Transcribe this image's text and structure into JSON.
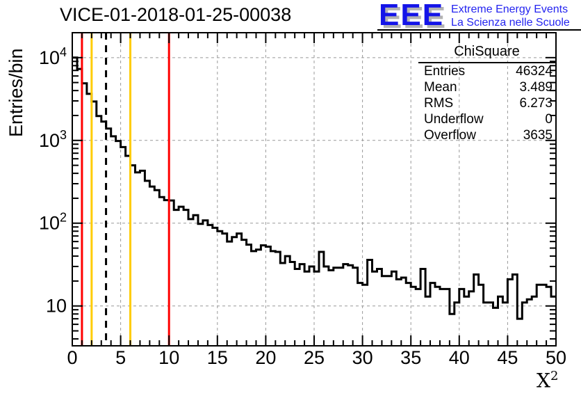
{
  "header": {
    "title": "VICE-01-2018-01-25-00038"
  },
  "logo": {
    "eee": "EEE",
    "tagline1": "Extreme Energy Events",
    "tagline2": "La Scienza nelle Scuole",
    "eee_color": "#1414e8",
    "tagline_color": "#2424f0",
    "shadow_color": "#b3b3b3"
  },
  "axes": {
    "y_title": "Entries/bin",
    "x_title_base": "X",
    "x_title_sup": "2"
  },
  "stats": {
    "title": "ChiSquare",
    "rows": [
      {
        "label": "Entries",
        "value": "46324"
      },
      {
        "label": "Mean",
        "value": "3.489"
      },
      {
        "label": "RMS",
        "value": "6.273"
      },
      {
        "label": "Underflow",
        "value": "0"
      },
      {
        "label": "Overflow",
        "value": "3635"
      }
    ]
  },
  "chart_data": {
    "type": "bar",
    "draw_style": "step-histogram-outline",
    "title": "VICE-01-2018-01-25-00038",
    "xlabel": "X^2",
    "ylabel": "Entries/bin",
    "xlim": [
      0,
      50
    ],
    "ylim": [
      3.3,
      20000
    ],
    "ylog": true,
    "grid": true,
    "bin_start": 0,
    "bin_width": 0.5,
    "values": [
      10000,
      7300,
      4900,
      3650,
      2950,
      1970,
      1690,
      1390,
      1120,
      985,
      830,
      650,
      500,
      410,
      430,
      325,
      277,
      251,
      207,
      190,
      188,
      145,
      158,
      145,
      112,
      125,
      98,
      108,
      95,
      88,
      80,
      75,
      60,
      68,
      75,
      63,
      55,
      46,
      48,
      54,
      52,
      46,
      45,
      33,
      40,
      34,
      28,
      32,
      26,
      30,
      26,
      45,
      30,
      27,
      29,
      29,
      32,
      31,
      29,
      19,
      18,
      36,
      26,
      28,
      23,
      23,
      26,
      21,
      22,
      19,
      17,
      16,
      28,
      13,
      19,
      17,
      16,
      16,
      8,
      11,
      16,
      13,
      15,
      24,
      18,
      11,
      11,
      9.5,
      13,
      11,
      21,
      24,
      7,
      11,
      12,
      13,
      18,
      18,
      17,
      13
    ],
    "x_major_ticks": [
      0,
      5,
      10,
      15,
      20,
      25,
      30,
      35,
      40,
      45,
      50
    ],
    "y_major_tick_exponents": [
      1,
      2,
      3,
      4
    ],
    "vlines": [
      {
        "x": 1,
        "color": "#ff0000",
        "style": "solid"
      },
      {
        "x": 2,
        "color": "#ffcc00",
        "style": "solid"
      },
      {
        "x": 3.489,
        "color": "#000000",
        "style": "dashed"
      },
      {
        "x": 6,
        "color": "#ffcc00",
        "style": "solid"
      },
      {
        "x": 10,
        "color": "#ff0000",
        "style": "solid"
      }
    ],
    "colors": {
      "histogram": "#000000",
      "grid": "#999999",
      "frame": "#000000"
    }
  }
}
